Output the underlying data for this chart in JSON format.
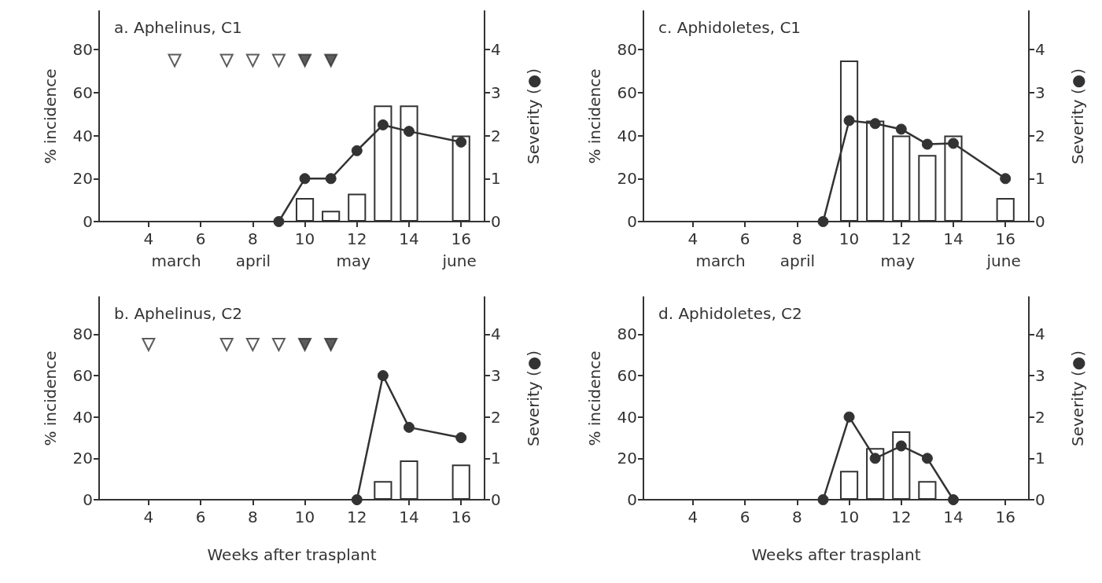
{
  "chart_data": [
    {
      "type": "bar",
      "title": "a. Aphelinus, C1",
      "ylabel": "% incidence",
      "y2label": "Severity (●)",
      "xlim": [
        2.1,
        16.9
      ],
      "xticks": [
        4,
        6,
        8,
        10,
        12,
        14,
        16
      ],
      "ylim": [
        0,
        98
      ],
      "yticks": [
        0,
        20,
        40,
        60,
        80
      ],
      "y2lim": [
        0,
        4.9
      ],
      "y2ticks": [
        0,
        1,
        2,
        3,
        4
      ],
      "grid": false,
      "annotations": [
        "march",
        "april",
        "may",
        "june"
      ],
      "series": [
        {
          "color": "#ffffff",
          "x": [
            10,
            11,
            12,
            13,
            14,
            16
          ],
          "values": [
            11,
            5,
            13,
            54,
            54,
            40
          ]
        },
        {
          "type": "line",
          "axis": "y2",
          "color": "#333333",
          "marker": "circle",
          "line_style": "solid",
          "x": [
            9,
            10,
            11,
            12,
            13,
            14,
            16
          ],
          "values": [
            0,
            1,
            1,
            1.65,
            2.25,
            2.1,
            1.85
          ]
        },
        {
          "type": "scatter",
          "color": "#ffffff",
          "marker": "triangle",
          "x": [
            5,
            7,
            8,
            9
          ],
          "values": [
            75,
            75,
            75,
            75
          ]
        },
        {
          "type": "scatter",
          "color": "#333333",
          "marker": "triangle",
          "x": [
            10,
            11
          ],
          "values": [
            75,
            75
          ]
        }
      ]
    },
    {
      "type": "bar",
      "title": "c. Aphidoletes, C1",
      "ylabel": "% incidence",
      "y2label": "Severity (●)",
      "xlim": [
        2.1,
        16.9
      ],
      "xticks": [
        4,
        6,
        8,
        10,
        12,
        14,
        16
      ],
      "ylim": [
        0,
        98
      ],
      "yticks": [
        0,
        20,
        40,
        60,
        80
      ],
      "y2lim": [
        0,
        4.9
      ],
      "y2ticks": [
        0,
        1,
        2,
        3,
        4
      ],
      "grid": false,
      "annotations": [
        "march",
        "april",
        "may",
        "june"
      ],
      "series": [
        {
          "color": "#ffffff",
          "x": [
            10,
            11,
            12,
            13,
            14,
            16
          ],
          "values": [
            75,
            47,
            40,
            31,
            40,
            11
          ]
        },
        {
          "type": "line",
          "axis": "y2",
          "color": "#333333",
          "marker": "circle",
          "line_style": "solid",
          "x": [
            9,
            10,
            11,
            12,
            13,
            14,
            16
          ],
          "values": [
            0,
            2.35,
            2.28,
            2.15,
            1.8,
            1.82,
            1
          ]
        }
      ]
    },
    {
      "type": "bar",
      "title": "b. Aphelinus, C2",
      "ylabel": "% incidence",
      "y2label": "Severity (●)",
      "xlabel": "Weeks after trasplant",
      "xlim": [
        2.1,
        16.9
      ],
      "xticks": [
        4,
        6,
        8,
        10,
        12,
        14,
        16
      ],
      "ylim": [
        0,
        98
      ],
      "yticks": [
        0,
        20,
        40,
        60,
        80
      ],
      "y2lim": [
        0,
        4.9
      ],
      "y2ticks": [
        0,
        1,
        2,
        3,
        4
      ],
      "grid": false,
      "series": [
        {
          "color": "#ffffff",
          "x": [
            13,
            14,
            16
          ],
          "values": [
            9,
            19,
            17
          ]
        },
        {
          "type": "line",
          "axis": "y2",
          "color": "#333333",
          "marker": "circle",
          "line_style": "solid",
          "x": [
            12,
            13,
            14,
            16
          ],
          "values": [
            0,
            3,
            1.75,
            1.5
          ]
        },
        {
          "type": "scatter",
          "color": "#ffffff",
          "marker": "triangle",
          "x": [
            4,
            7,
            8,
            9
          ],
          "values": [
            75,
            75,
            75,
            75
          ]
        },
        {
          "type": "scatter",
          "color": "#333333",
          "marker": "triangle",
          "x": [
            10,
            11
          ],
          "values": [
            75,
            75
          ]
        }
      ]
    },
    {
      "type": "bar",
      "title": "d. Aphidoletes, C2",
      "ylabel": "% incidence",
      "y2label": "Severity (●)",
      "xlabel": "Weeks after trasplant",
      "xlim": [
        2.1,
        16.9
      ],
      "xticks": [
        4,
        6,
        8,
        10,
        12,
        14,
        16
      ],
      "ylim": [
        0,
        98
      ],
      "yticks": [
        0,
        20,
        40,
        60,
        80
      ],
      "y2lim": [
        0,
        4.9
      ],
      "y2ticks": [
        0,
        1,
        2,
        3,
        4
      ],
      "grid": false,
      "series": [
        {
          "color": "#ffffff",
          "x": [
            10,
            11,
            12,
            13
          ],
          "values": [
            14,
            25,
            33,
            9
          ]
        },
        {
          "type": "line",
          "axis": "y2",
          "color": "#333333",
          "marker": "circle",
          "line_style": "solid",
          "x": [
            9,
            10,
            11,
            12,
            13,
            14
          ],
          "values": [
            0,
            2,
            1,
            1.3,
            1,
            0
          ]
        }
      ]
    }
  ]
}
